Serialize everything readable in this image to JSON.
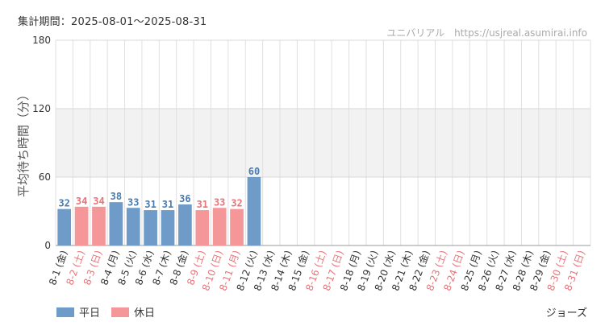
{
  "header": {
    "period": "集計期間：2025-08-01～2025-08-31",
    "site_name": "ユニバリアル",
    "site_url": "https://usjreal.asumirai.info"
  },
  "legend": {
    "weekday_label": "平日",
    "holiday_label": "休日"
  },
  "footer": {
    "attraction": "ジョーズ"
  },
  "colors": {
    "weekday": "#6e9bc8",
    "holiday": "#f59699",
    "weekday_text": "#4a7bb0",
    "holiday_text": "#e8747a",
    "band": "#f2f2f2",
    "grid": "#e0e0e0"
  },
  "chart_data": {
    "type": "bar",
    "ylabel": "平均待ち時間（分）",
    "ylim": [
      0,
      180
    ],
    "yticks": [
      0,
      60,
      120,
      180
    ],
    "shaded_band": [
      60,
      120
    ],
    "categories": [
      "8-1 (金)",
      "8-2 (土)",
      "8-3 (日)",
      "8-4 (月)",
      "8-5 (火)",
      "8-6 (水)",
      "8-7 (木)",
      "8-8 (金)",
      "8-9 (土)",
      "8-10 (日)",
      "8-11 (月)",
      "8-12 (火)",
      "8-13 (水)",
      "8-14 (木)",
      "8-15 (金)",
      "8-16 (土)",
      "8-17 (日)",
      "8-18 (月)",
      "8-19 (火)",
      "8-20 (水)",
      "8-21 (木)",
      "8-22 (金)",
      "8-23 (土)",
      "8-24 (日)",
      "8-25 (月)",
      "8-26 (火)",
      "8-27 (水)",
      "8-28 (木)",
      "8-29 (金)",
      "8-30 (土)",
      "8-31 (日)"
    ],
    "day_type": [
      "weekday",
      "holiday",
      "holiday",
      "weekday",
      "weekday",
      "weekday",
      "weekday",
      "weekday",
      "holiday",
      "holiday",
      "holiday",
      "weekday",
      "weekday",
      "weekday",
      "weekday",
      "holiday",
      "holiday",
      "weekday",
      "weekday",
      "weekday",
      "weekday",
      "weekday",
      "holiday",
      "holiday",
      "weekday",
      "weekday",
      "weekday",
      "weekday",
      "weekday",
      "holiday",
      "holiday"
    ],
    "values": [
      32,
      34,
      34,
      38,
      33,
      31,
      31,
      36,
      31,
      33,
      32,
      60,
      null,
      null,
      null,
      null,
      null,
      null,
      null,
      null,
      null,
      null,
      null,
      null,
      null,
      null,
      null,
      null,
      null,
      null,
      null
    ]
  }
}
